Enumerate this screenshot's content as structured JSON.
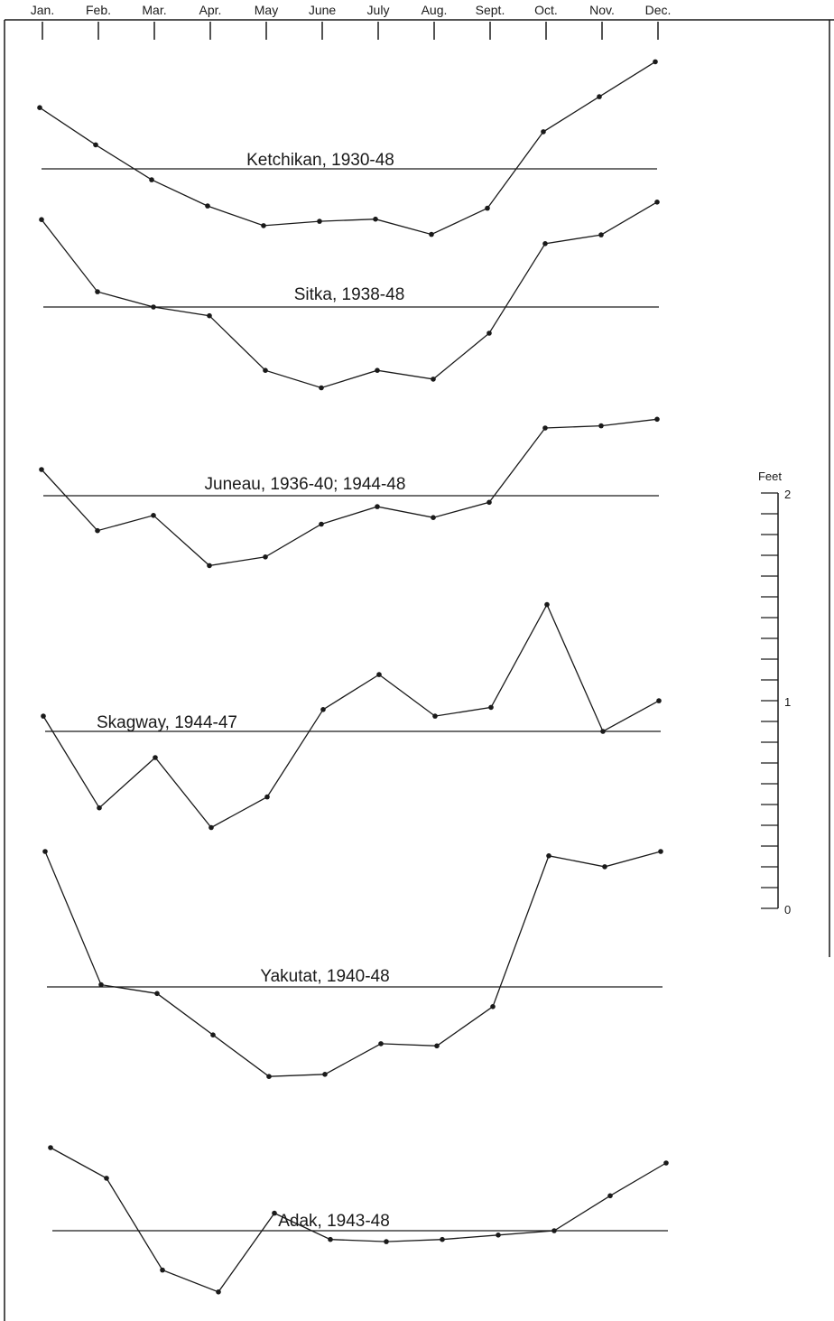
{
  "chart_data": {
    "type": "line",
    "categories": [
      "Jan.",
      "Feb.",
      "Mar.",
      "Apr.",
      "May",
      "June",
      "July",
      "Aug.",
      "Sept.",
      "Oct.",
      "Nov.",
      "Dec."
    ],
    "scale": {
      "title": "Feet",
      "range": [
        0,
        2
      ],
      "labels": [
        "2",
        "1",
        "0"
      ],
      "minor_step": 0.1
    },
    "series": [
      {
        "name": "Ketchikan, 1930-48",
        "values": [
          0.28,
          0.11,
          -0.05,
          -0.17,
          -0.26,
          -0.24,
          -0.23,
          -0.3,
          -0.18,
          0.17,
          0.33,
          0.49
        ]
      },
      {
        "name": "Sitka, 1938-48",
        "values": [
          0.4,
          0.07,
          0.0,
          -0.04,
          -0.29,
          -0.37,
          -0.29,
          -0.33,
          -0.12,
          0.29,
          0.33,
          0.48
        ]
      },
      {
        "name": "Juneau, 1936-40; 1944-48",
        "values": [
          0.12,
          -0.16,
          -0.09,
          -0.32,
          -0.28,
          -0.13,
          -0.05,
          -0.1,
          -0.03,
          0.31,
          0.32,
          0.35
        ]
      },
      {
        "name": "Skagway, 1944-47",
        "values": [
          0.07,
          -0.35,
          -0.12,
          -0.44,
          -0.3,
          0.1,
          0.26,
          0.07,
          0.11,
          0.58,
          0.0,
          0.14
        ]
      },
      {
        "name": "Yakutat, 1940-48",
        "values": [
          0.62,
          0.01,
          -0.03,
          -0.22,
          -0.41,
          -0.4,
          -0.26,
          -0.27,
          -0.09,
          0.6,
          0.55,
          0.62
        ]
      },
      {
        "name": "Adak, 1943-48",
        "values": [
          0.38,
          0.24,
          -0.18,
          -0.28,
          0.08,
          -0.04,
          -0.05,
          -0.04,
          -0.02,
          0.0,
          0.16,
          0.31
        ]
      }
    ]
  }
}
